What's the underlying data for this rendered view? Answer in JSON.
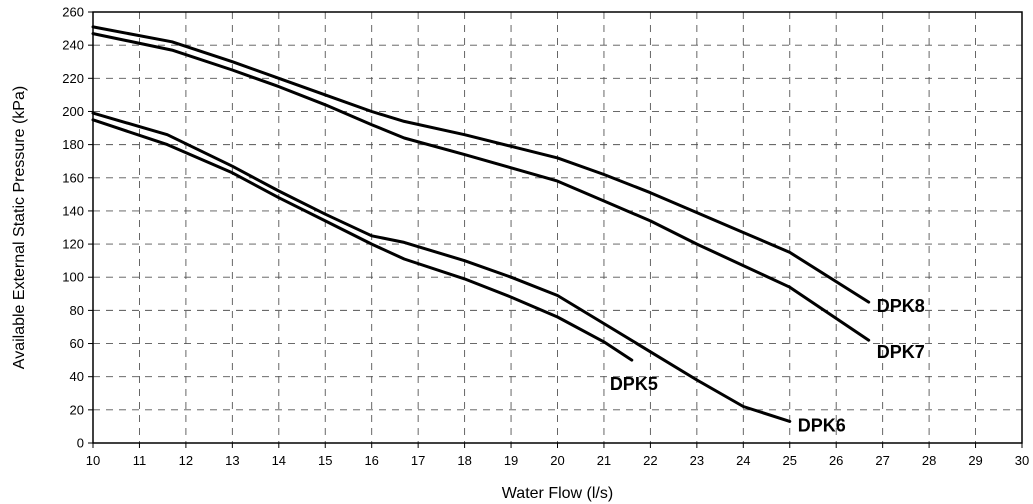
{
  "chart_data": {
    "type": "line",
    "title": "",
    "xlabel": "Water Flow (l/s)",
    "ylabel": "Available External Static Pressure (kPa)",
    "xlim": [
      10,
      30
    ],
    "ylim": [
      0,
      260
    ],
    "xticks": [
      10,
      11,
      12,
      13,
      14,
      15,
      16,
      17,
      18,
      19,
      20,
      21,
      22,
      23,
      24,
      25,
      26,
      27,
      28,
      29,
      30
    ],
    "yticks": [
      0,
      20,
      40,
      60,
      80,
      100,
      120,
      140,
      160,
      180,
      200,
      220,
      240,
      260
    ],
    "grid": true,
    "series": [
      {
        "name": "DPK5",
        "x": [
          10,
          11.6,
          13,
          14,
          15,
          16,
          16.7,
          18,
          19,
          20,
          21,
          21.6
        ],
        "y": [
          195,
          180,
          163,
          148,
          134,
          120,
          111,
          99,
          88,
          76,
          61,
          50
        ]
      },
      {
        "name": "DPK6",
        "x": [
          10,
          11.6,
          13,
          14,
          15,
          16,
          16.7,
          18,
          19,
          20,
          21,
          22,
          23,
          24,
          25
        ],
        "y": [
          199,
          186,
          167,
          152,
          138,
          125,
          121,
          110,
          100,
          89,
          72,
          55,
          38,
          22,
          13
        ]
      },
      {
        "name": "DPK7",
        "x": [
          10,
          11.7,
          13,
          14,
          15,
          16,
          16.7,
          18,
          19,
          20,
          21,
          22,
          23,
          24,
          25,
          26.7
        ],
        "y": [
          247,
          237,
          225,
          215,
          204,
          192,
          184,
          174,
          166,
          158,
          146,
          134,
          120,
          107,
          94,
          62
        ]
      },
      {
        "name": "DPK8",
        "x": [
          10,
          11.7,
          13,
          14,
          15,
          16,
          16.7,
          18,
          19,
          20,
          21,
          22,
          23,
          24,
          25,
          26.7
        ],
        "y": [
          251,
          242,
          230,
          220,
          210,
          200,
          194,
          186,
          179,
          172,
          162,
          151,
          139,
          127,
          115,
          85
        ]
      }
    ]
  }
}
